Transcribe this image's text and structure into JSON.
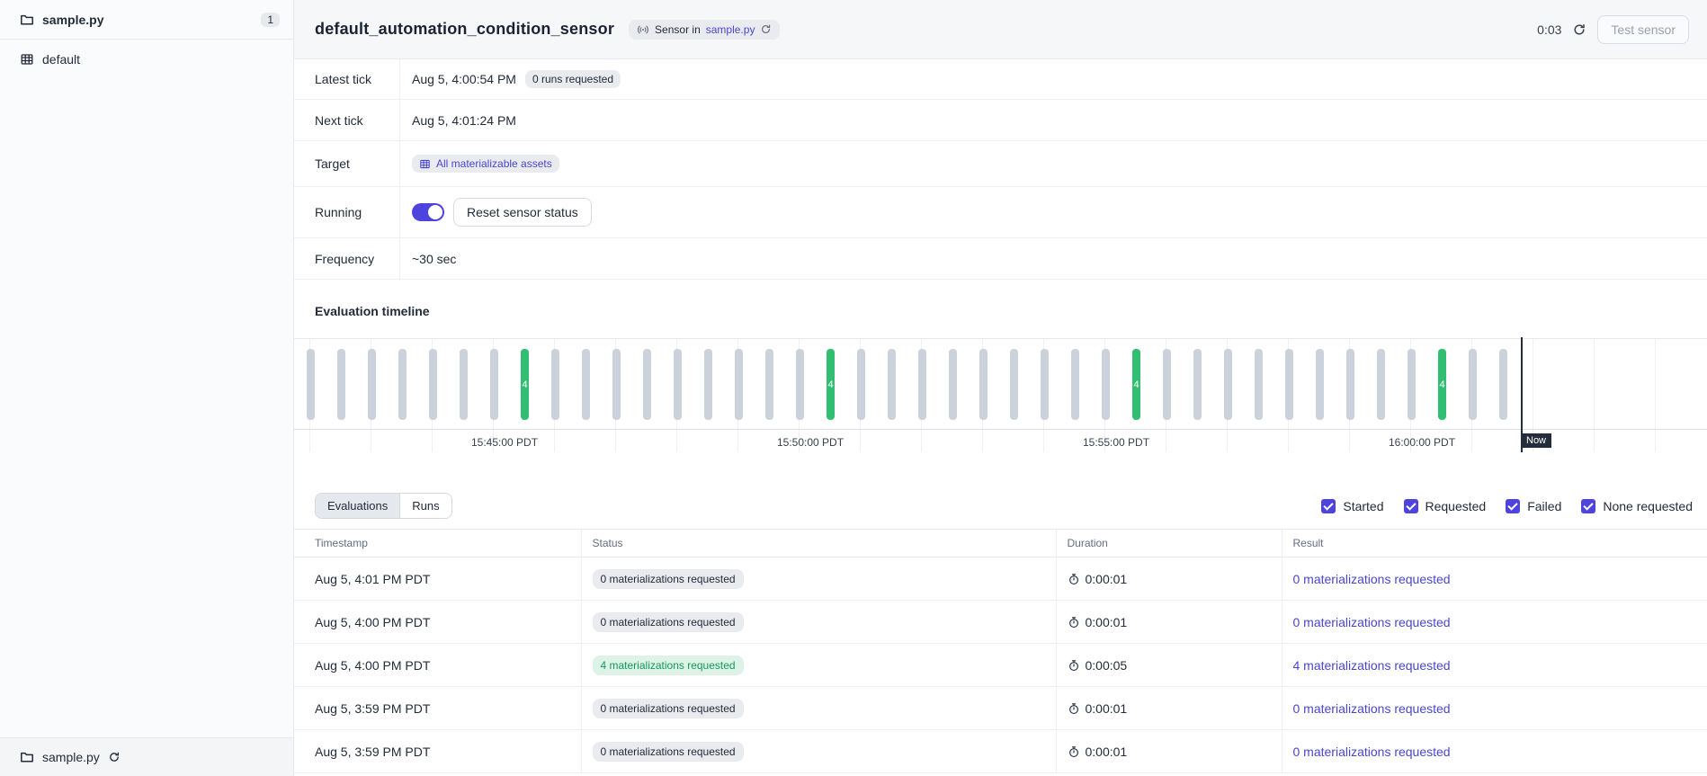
{
  "colors": {
    "accent": "#4f43dd",
    "success_bar": "#31be73",
    "success_badge_bg": "#def3e7",
    "success_badge_text": "#149857",
    "neutral_badge_bg": "#e9ebef",
    "now_marker": "#252d3d"
  },
  "sidebar": {
    "code_location": {
      "label": "sample.py",
      "count": "1"
    },
    "items": [
      {
        "label": "default"
      }
    ],
    "footer_label": "sample.py"
  },
  "header": {
    "title": "default_automation_condition_sensor",
    "type_badge": {
      "prefix": "Sensor in",
      "link": "sample.py"
    },
    "timer": "0:03",
    "test_button": "Test sensor"
  },
  "meta": {
    "latest_tick": {
      "label": "Latest tick",
      "value": "Aug 5, 4:00:54 PM",
      "badge": "0 runs requested"
    },
    "next_tick": {
      "label": "Next tick",
      "value": "Aug 5, 4:01:24 PM"
    },
    "target": {
      "label": "Target",
      "value": "All materializable assets"
    },
    "running": {
      "label": "Running",
      "toggle_on": true,
      "button": "Reset sensor status"
    },
    "frequency": {
      "label": "Frequency",
      "value": "~30 sec"
    }
  },
  "timeline": {
    "heading": "Evaluation timeline",
    "bar_count": 40,
    "green_bars": {
      "indices": [
        7,
        17,
        27,
        37
      ],
      "value": "4"
    },
    "axis_labels": [
      "15:45:00 PDT",
      "15:50:00 PDT",
      "15:55:00 PDT",
      "16:00:00 PDT"
    ],
    "now_label": "Now"
  },
  "toolbar": {
    "tabs": [
      {
        "label": "Evaluations",
        "active": true
      },
      {
        "label": "Runs",
        "active": false
      }
    ],
    "filters": [
      {
        "label": "Started",
        "checked": true
      },
      {
        "label": "Requested",
        "checked": true
      },
      {
        "label": "Failed",
        "checked": true
      },
      {
        "label": "None requested",
        "checked": true
      }
    ]
  },
  "table": {
    "columns": [
      "Timestamp",
      "Status",
      "Duration",
      "Result"
    ],
    "rows": [
      {
        "timestamp": "Aug 5, 4:01 PM PDT",
        "status": "0 materializations requested",
        "status_kind": "neutral",
        "duration": "0:00:01",
        "result": "0 materializations requested"
      },
      {
        "timestamp": "Aug 5, 4:00 PM PDT",
        "status": "0 materializations requested",
        "status_kind": "neutral",
        "duration": "0:00:01",
        "result": "0 materializations requested"
      },
      {
        "timestamp": "Aug 5, 4:00 PM PDT",
        "status": "4 materializations requested",
        "status_kind": "success",
        "duration": "0:00:05",
        "result": "4 materializations requested"
      },
      {
        "timestamp": "Aug 5, 3:59 PM PDT",
        "status": "0 materializations requested",
        "status_kind": "neutral",
        "duration": "0:00:01",
        "result": "0 materializations requested"
      },
      {
        "timestamp": "Aug 5, 3:59 PM PDT",
        "status": "0 materializations requested",
        "status_kind": "neutral",
        "duration": "0:00:01",
        "result": "0 materializations requested"
      }
    ]
  }
}
